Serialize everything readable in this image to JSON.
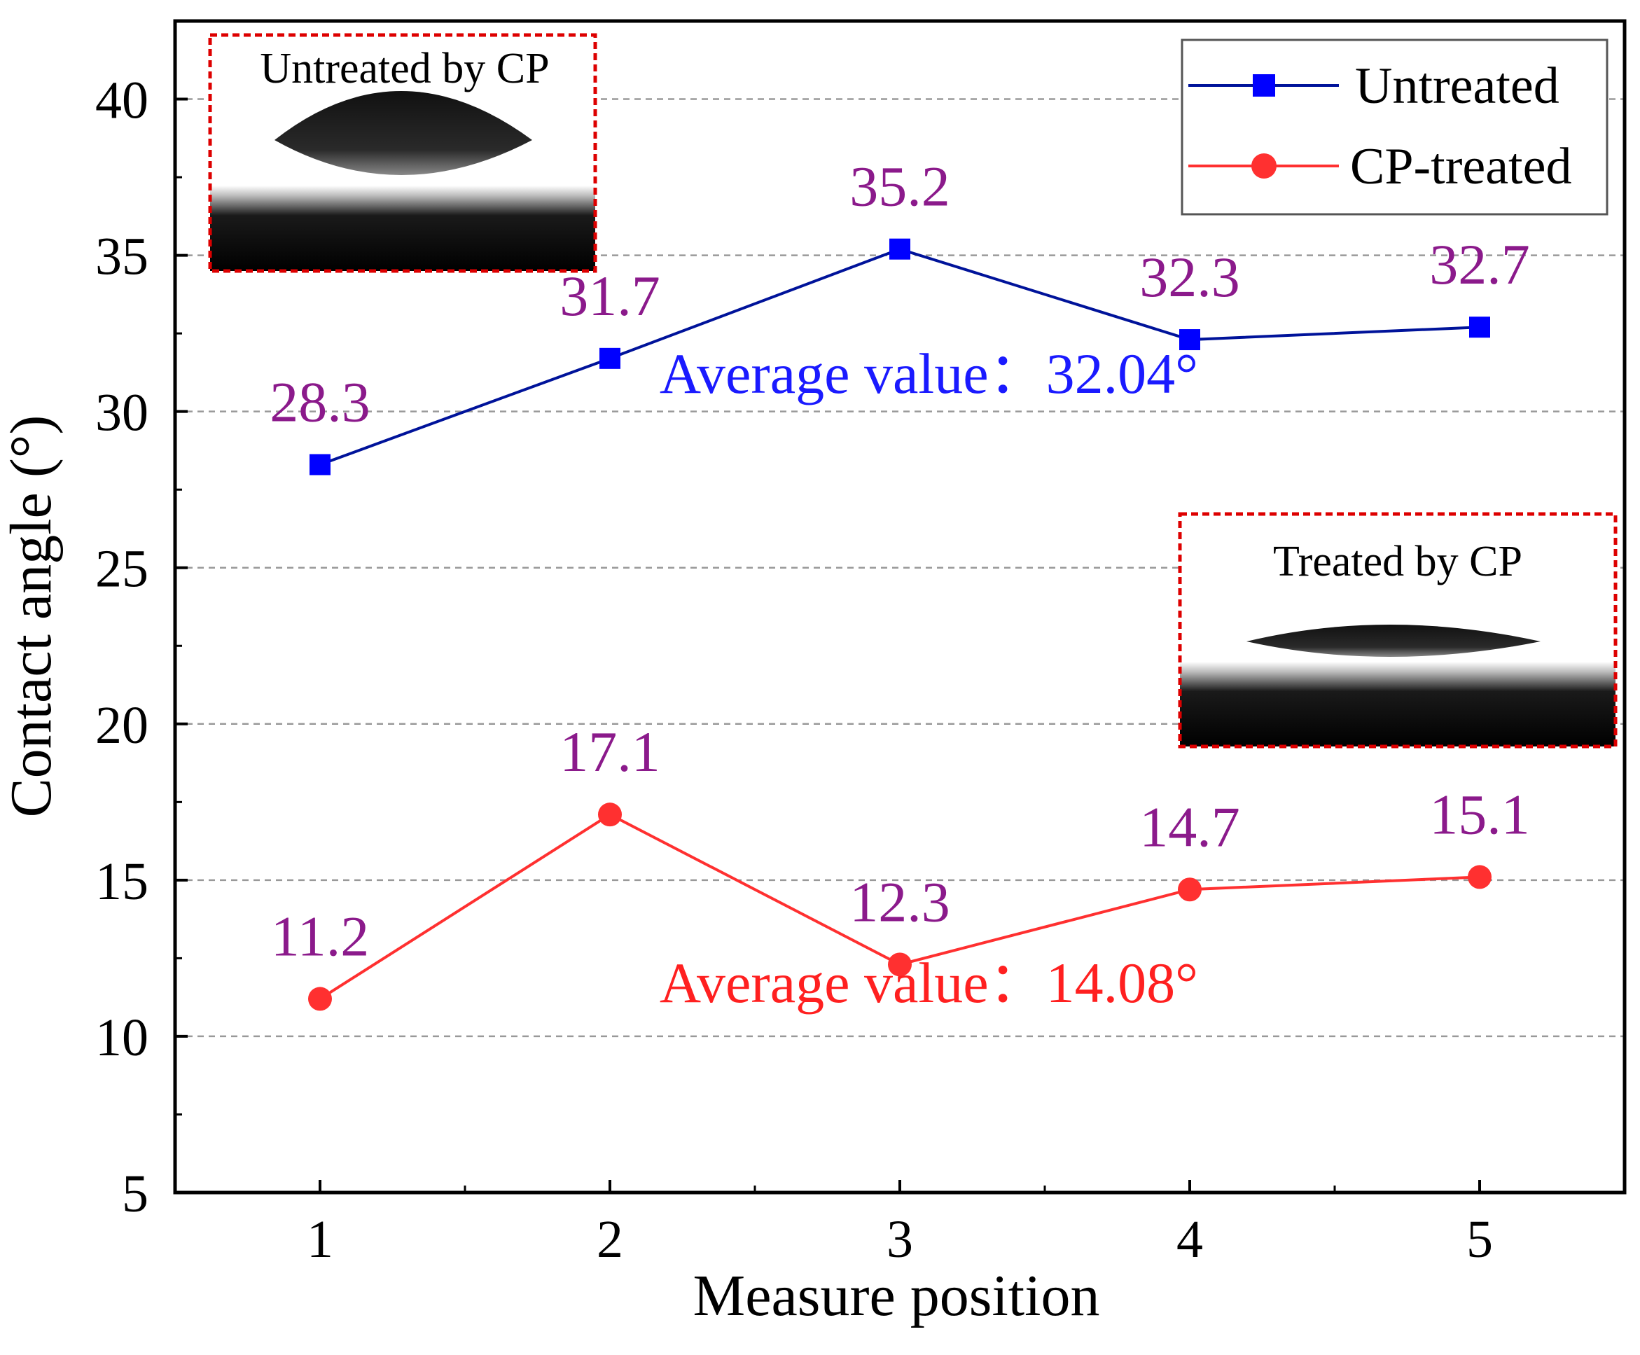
{
  "chart_data": {
    "type": "line",
    "xlabel": "Measure position",
    "ylabel": "Contact angle (°)",
    "x": [
      1,
      2,
      3,
      4,
      5
    ],
    "xlim": [
      0.5,
      5.5
    ],
    "ylim": [
      5,
      42.5
    ],
    "x_ticks": [
      1,
      2,
      3,
      4,
      5
    ],
    "y_ticks": [
      5,
      10,
      15,
      20,
      25,
      30,
      35,
      40
    ],
    "grid": "horizontal dashed at major ticks",
    "legend_position": "top-right",
    "series": [
      {
        "name": "Untreated",
        "marker": "square",
        "color": "#0000ff",
        "line_color": "#00139a",
        "values": [
          28.3,
          31.7,
          35.2,
          32.3,
          32.7
        ],
        "labels": [
          "28.3",
          "31.7",
          "35.2",
          "32.3",
          "32.7"
        ]
      },
      {
        "name": "CP-treated",
        "marker": "circle",
        "color": "#ff3030",
        "line_color": "#ff3030",
        "values": [
          11.2,
          17.1,
          12.3,
          14.7,
          15.1
        ],
        "labels": [
          "11.2",
          "17.1",
          "12.3",
          "14.7",
          "15.1"
        ]
      }
    ],
    "annotations": [
      {
        "text": "Average value：32.04°",
        "color": "#1a1aff",
        "x": 3.1,
        "y": 30.6
      },
      {
        "text": "Average value：14.08°",
        "color": "#ff2020",
        "x": 3.1,
        "y": 11.1
      }
    ],
    "insets": [
      {
        "title": "Untreated by CP",
        "position": "top-left",
        "border_color": "#dd0000",
        "image": "droplet-contact-angle-photo"
      },
      {
        "title": "Treated by CP",
        "position": "right-middle",
        "border_color": "#dd0000",
        "image": "droplet-contact-angle-photo"
      }
    ],
    "data_label_color": "#8b1a8b"
  }
}
